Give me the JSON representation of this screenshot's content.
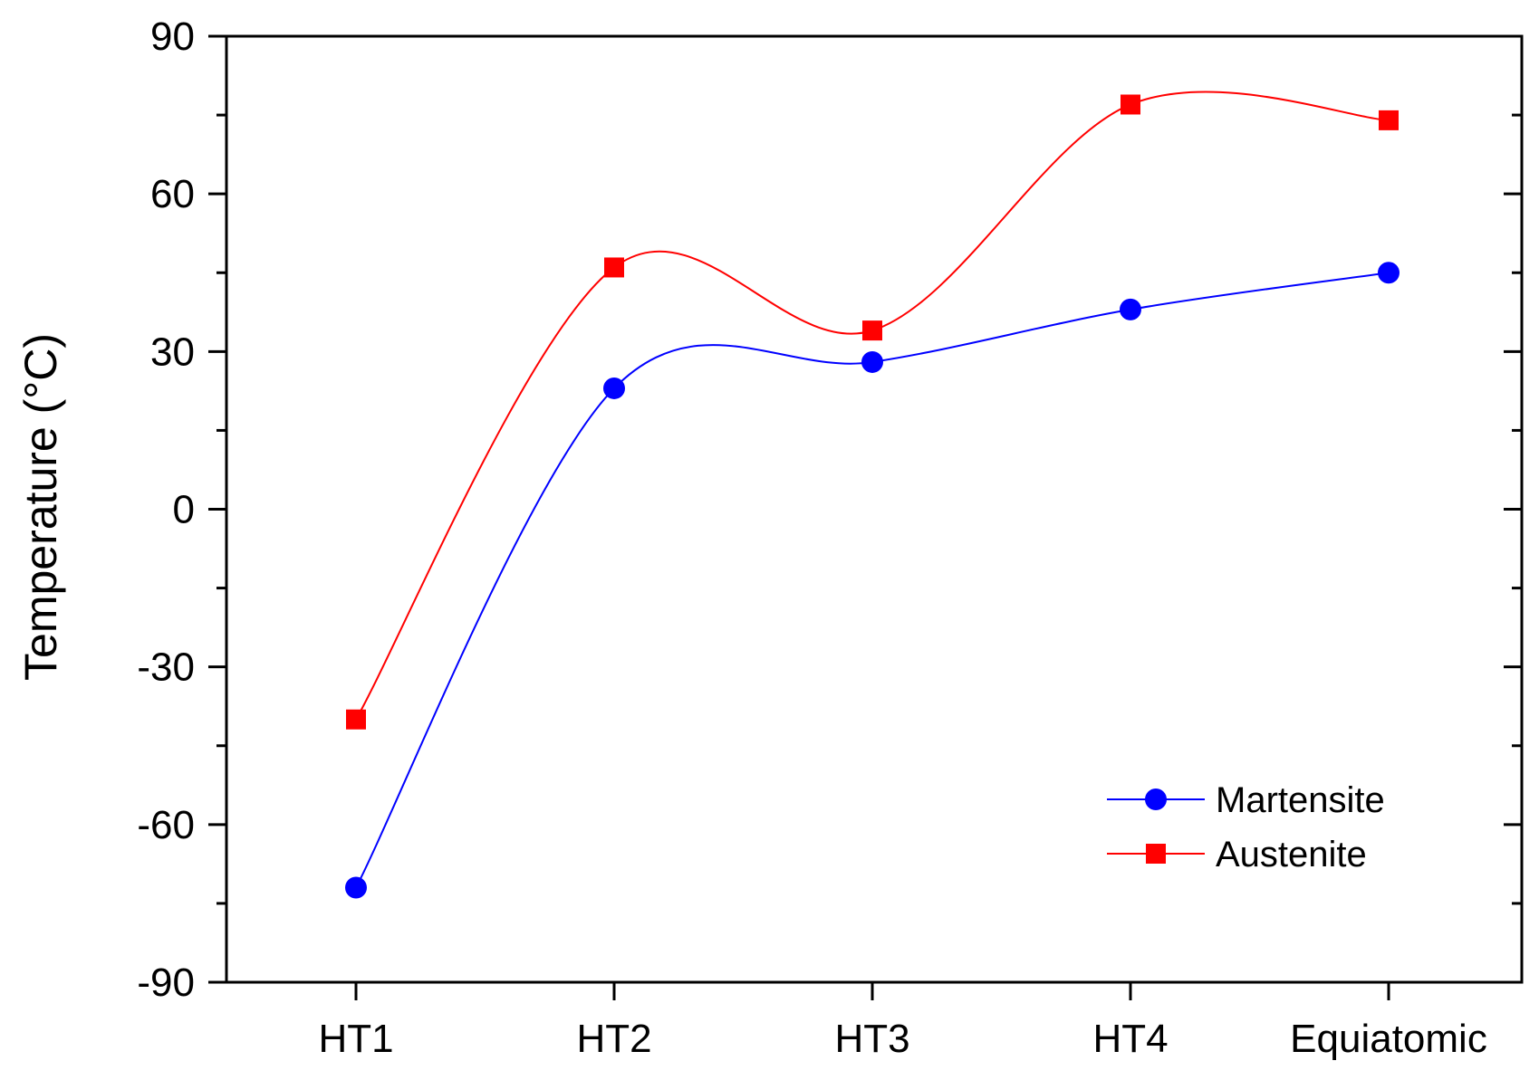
{
  "chart_data": {
    "type": "line",
    "categories": [
      "HT1",
      "HT2",
      "HT3",
      "HT4",
      "Equiatomic"
    ],
    "ylabel": "Temperature (°C)",
    "xlabel": "",
    "ylim": [
      -90,
      90
    ],
    "yticks": [
      -90,
      -60,
      -30,
      0,
      30,
      60,
      90
    ],
    "yticks_labels": [
      "-90",
      "-60",
      "-30",
      "0",
      "30",
      "60",
      "90"
    ],
    "grid": false,
    "legend_position": "bottom-right",
    "smooth": true,
    "series": [
      {
        "name": "Martensite",
        "values": [
          -72,
          23,
          28,
          38,
          45
        ],
        "color": "#0000ff",
        "marker": "circle"
      },
      {
        "name": "Austenite",
        "values": [
          -40,
          46,
          34,
          77,
          74
        ],
        "color": "#ff0000",
        "marker": "square"
      }
    ]
  }
}
